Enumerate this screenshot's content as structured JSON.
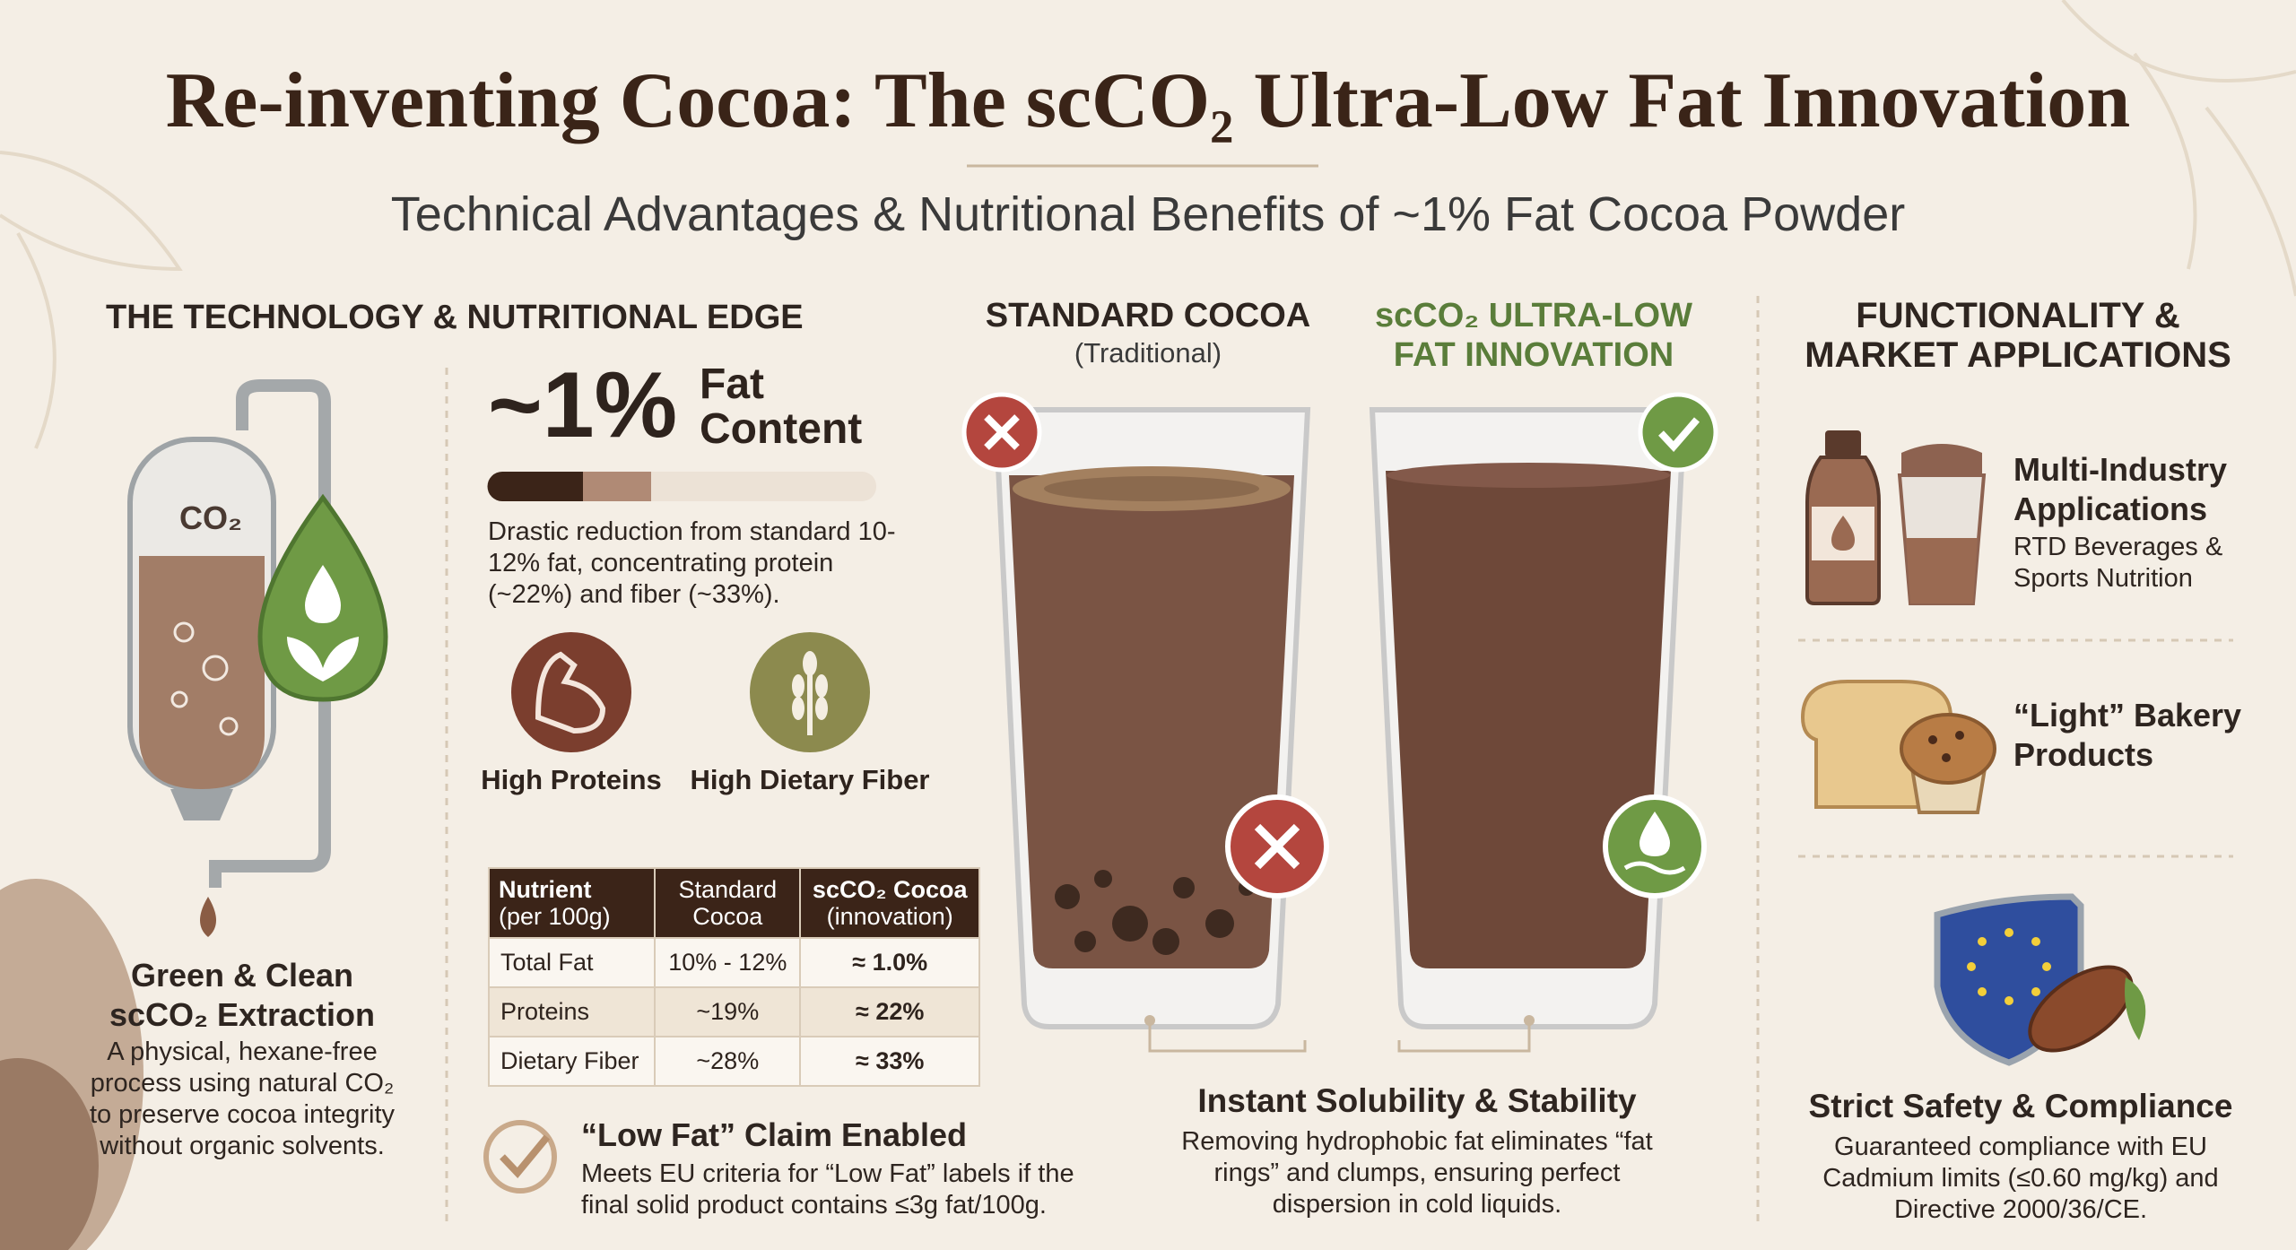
{
  "header": {
    "title": "Re-inventing Cocoa: The scCO₂ Ultra-Low Fat Innovation",
    "subtitle": "Technical Advantages & Nutritional Benefits of ~1% Fat Cocoa Powder"
  },
  "technology": {
    "heading": "THE TECHNOLOGY & NUTRITIONAL EDGE",
    "tank_label": "CO₂",
    "extraction_title": "Green & Clean scCO₂ Extraction",
    "extraction_text": "A physical, hexane-free process using natural CO₂ to preserve cocoa integrity without organic solvents.",
    "fat_value": "~1%",
    "fat_label": "Fat Content",
    "fat_text": "Drastic reduction from standard 10-12% fat, concentrating protein (~22%) and fiber (~33%).",
    "benefits": [
      "High Proteins",
      "High Dietary Fiber"
    ],
    "table": {
      "header": [
        {
          "main": "Nutrient",
          "sub": "(per 100g)"
        },
        {
          "main": "Standard",
          "sub": "Cocoa"
        },
        {
          "main": "scCO₂ Cocoa",
          "sub": "(innovation)"
        }
      ],
      "rows": [
        [
          "Total Fat",
          "10% - 12%",
          "≈ 1.0%"
        ],
        [
          "Proteins",
          "~19%",
          "≈ 22%"
        ],
        [
          "Dietary Fiber",
          "~28%",
          "≈ 33%"
        ]
      ]
    },
    "claim": {
      "title": "“Low Fat” Claim Enabled",
      "text": "Meets EU criteria for “Low Fat” labels if the final solid product contains ≤3g fat/100g."
    }
  },
  "comparison": {
    "standard": {
      "title": "STANDARD COCOA",
      "subtitle": "(Traditional)"
    },
    "innovation": {
      "title": "scCO₂ ULTRA-LOW FAT INNOVATION"
    },
    "solubility": {
      "title": "Instant Solubility & Stability",
      "text": "Removing hydrophobic fat eliminates “fat rings” and clumps, ensuring perfect dispersion in cold liquids."
    }
  },
  "applications": {
    "heading": "FUNCTIONALITY & MARKET APPLICATIONS",
    "items": [
      {
        "title": "Multi-Industry Applications",
        "text": "RTD Beverages & Sports Nutrition"
      },
      {
        "title": "“Light” Bakery Products"
      },
      {
        "title": "Strict Safety & Compliance",
        "text": "Guaranteed compliance with EU Cadmium limits (≤0.60 mg/kg) and Directive 2000/36/CE."
      }
    ]
  }
}
